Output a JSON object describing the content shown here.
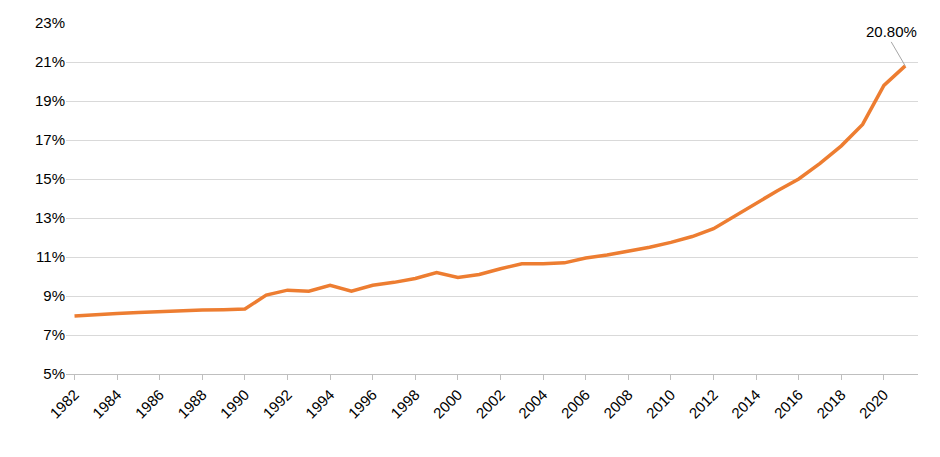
{
  "chart_data": {
    "type": "line",
    "color": "#ED7D31",
    "x": [
      1982,
      1983,
      1984,
      1985,
      1986,
      1987,
      1988,
      1989,
      1990,
      1991,
      1992,
      1993,
      1994,
      1995,
      1996,
      1997,
      1998,
      1999,
      2000,
      2001,
      2002,
      2003,
      2004,
      2005,
      2006,
      2007,
      2008,
      2009,
      2010,
      2011,
      2012,
      2013,
      2014,
      2015,
      2016,
      2017,
      2018,
      2019,
      2020,
      2021
    ],
    "values": [
      7.97,
      8.05,
      8.1,
      8.15,
      8.2,
      8.25,
      8.28,
      8.3,
      8.33,
      9.05,
      9.3,
      9.25,
      9.55,
      9.25,
      9.55,
      9.7,
      9.9,
      10.2,
      9.95,
      10.1,
      10.4,
      10.65,
      10.65,
      10.7,
      10.95,
      11.1,
      11.3,
      11.5,
      11.75,
      12.05,
      12.45,
      13.1,
      13.8,
      14.4,
      15.0,
      15.8,
      16.7,
      17.8,
      19.8,
      20.8
    ],
    "xlim": [
      1981.6,
      2021.6
    ],
    "xticks": [
      1982,
      1984,
      1986,
      1988,
      1990,
      1992,
      1994,
      1996,
      1998,
      2000,
      2002,
      2004,
      2006,
      2008,
      2010,
      2012,
      2014,
      2016,
      2018,
      2020
    ],
    "ylim": [
      5,
      23
    ],
    "yticks": [
      {
        "value": 5,
        "label": "5%"
      },
      {
        "value": 7,
        "label": "7%"
      },
      {
        "value": 9,
        "label": "9%"
      },
      {
        "value": 11,
        "label": "11%"
      },
      {
        "value": 13,
        "label": "13%"
      },
      {
        "value": 15,
        "label": "15%"
      },
      {
        "value": 17,
        "label": "17%"
      },
      {
        "value": 19,
        "label": "19%"
      },
      {
        "value": 21,
        "label": "21%"
      },
      {
        "value": 23,
        "label": "23%"
      }
    ],
    "grid": true,
    "annotations": [
      {
        "x": 2021,
        "y": 20.8,
        "text": "20.80%"
      }
    ]
  }
}
